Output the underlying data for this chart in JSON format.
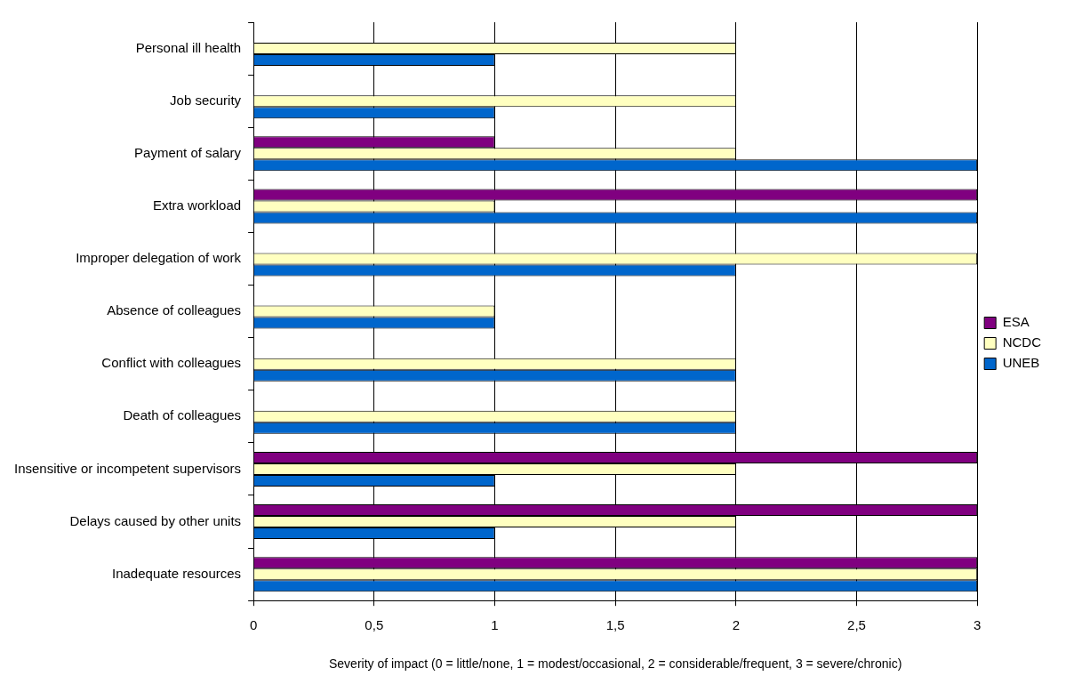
{
  "chart_data": {
    "type": "bar",
    "orientation": "horizontal",
    "xlabel": "Severity of impact (0 = little/none, 1 = modest/occasional, 2 = considerable/frequent, 3 = severe/chronic)",
    "categories": [
      "Personal ill health",
      "Job security",
      "Payment of salary",
      "Extra workload",
      "Improper delegation of work",
      "Absence of colleagues",
      "Conflict with colleagues",
      "Death of colleagues",
      "Insensitive or incompetent supervisors",
      "Delays caused by other units",
      "Inadequate resources"
    ],
    "series": [
      {
        "name": "ESA",
        "color": "#800080",
        "values": [
          null,
          null,
          1,
          3,
          null,
          null,
          null,
          null,
          3,
          3,
          3
        ]
      },
      {
        "name": "NCDC",
        "color": "#ffffc0",
        "values": [
          2,
          2,
          2,
          1,
          3,
          1,
          2,
          2,
          2,
          2,
          3
        ]
      },
      {
        "name": "UNEB",
        "color": "#0066cc",
        "values": [
          1,
          1,
          3,
          3,
          2,
          1,
          2,
          2,
          1,
          1,
          3
        ]
      }
    ],
    "xlim": [
      0,
      3
    ],
    "xticks": [
      0,
      {
        "value": 0.5,
        "label": "0,5"
      },
      1,
      {
        "value": 1.5,
        "label": "1,5"
      },
      2,
      {
        "value": 2.5,
        "label": "2,5"
      },
      3
    ],
    "grid": "x",
    "legend": "right"
  }
}
